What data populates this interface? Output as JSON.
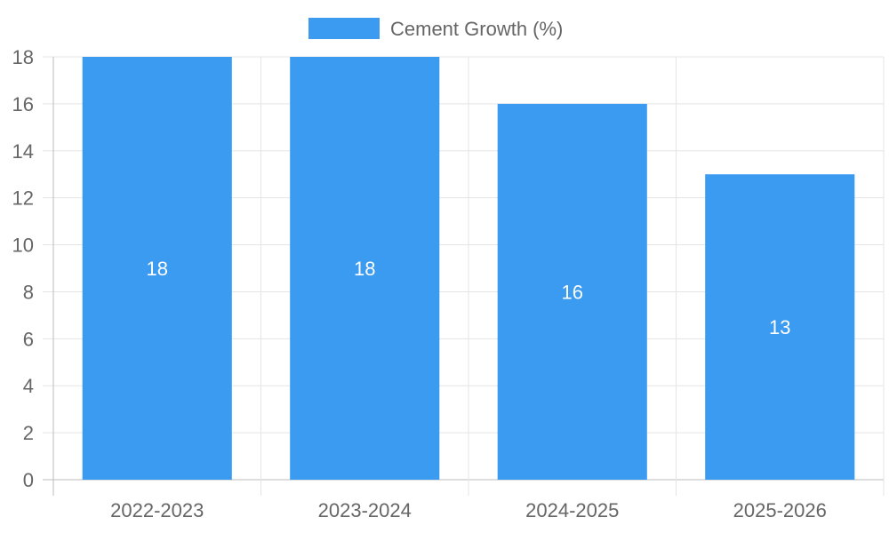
{
  "chart_data": {
    "type": "bar",
    "categories": [
      "2022-2023",
      "2023-2024",
      "2024-2025",
      "2025-2026"
    ],
    "series": [
      {
        "name": "Cement Growth (%)",
        "values": [
          18,
          18,
          16,
          13
        ]
      }
    ],
    "ylim": [
      0,
      18
    ],
    "yticks": [
      0,
      2,
      4,
      6,
      8,
      10,
      12,
      14,
      16,
      18
    ],
    "grid": true,
    "legend_position": "top-center",
    "data_labels": true,
    "colors": {
      "bar": "#3a9bf0",
      "grid": "#e5e5e5",
      "axis": "#bbbbbb",
      "text": "#666666",
      "label": "#ffffff"
    }
  }
}
